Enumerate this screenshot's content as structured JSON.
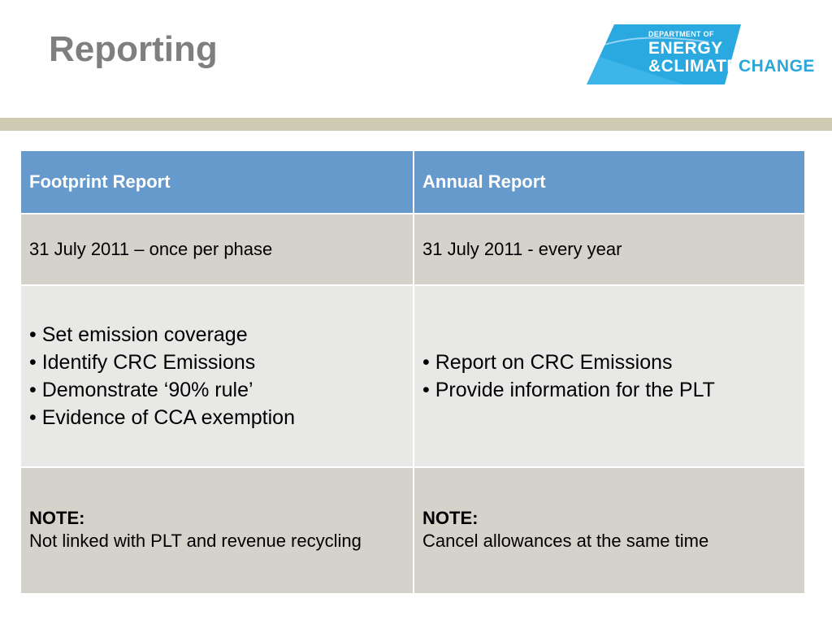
{
  "slide": {
    "title": "Reporting"
  },
  "logo": {
    "line1": "DEPARTMENT OF",
    "line2": "ENERGY",
    "line3_part1": "&CLIMATE",
    "line3_part2": "CHANGE",
    "colors": {
      "block": "#29a9e0",
      "change": "#2aa7d9"
    }
  },
  "table": {
    "headers": [
      "Footprint Report",
      "Annual Report"
    ],
    "dates": [
      "31 July 2011 – once per phase",
      "31 July 2011 - every year"
    ],
    "footprint_items": [
      "•  Set emission coverage",
      "•  Identify CRC Emissions",
      "•  Demonstrate ‘90% rule’",
      "•  Evidence of CCA exemption"
    ],
    "annual_items": [
      "• Report on CRC Emissions",
      "• Provide information for the PLT"
    ],
    "notes": [
      {
        "label": "NOTE:",
        "text": "Not linked with PLT and revenue recycling"
      },
      {
        "label": "NOTE:",
        "text": "Cancel allowances at the same time"
      }
    ]
  },
  "colors": {
    "title": "#7f7f7f",
    "header_bg": "#6699cc",
    "row_dark": "#d4d2cb",
    "row_light": "#e8e8e6",
    "rule": "#cfcbb3"
  }
}
